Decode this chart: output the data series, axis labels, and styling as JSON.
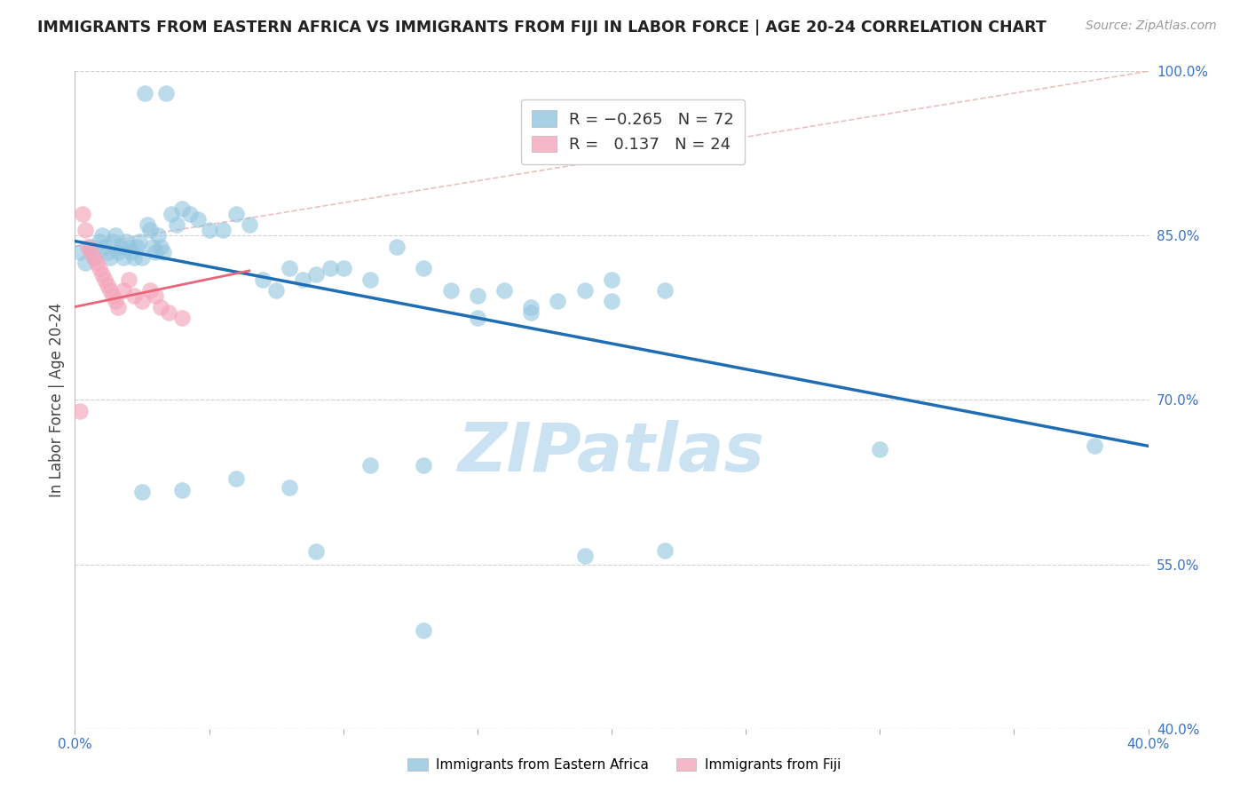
{
  "title": "IMMIGRANTS FROM EASTERN AFRICA VS IMMIGRANTS FROM FIJI IN LABOR FORCE | AGE 20-24 CORRELATION CHART",
  "source": "Source: ZipAtlas.com",
  "ylabel": "In Labor Force | Age 20-24",
  "xlim": [
    0.0,
    0.4
  ],
  "ylim": [
    0.4,
    1.0
  ],
  "xticks": [
    0.0,
    0.05,
    0.1,
    0.15,
    0.2,
    0.25,
    0.3,
    0.35,
    0.4
  ],
  "yticks_right": [
    1.0,
    0.85,
    0.7,
    0.55,
    0.4
  ],
  "ytick_labels_right": [
    "100.0%",
    "85.0%",
    "70.0%",
    "55.0%",
    "40.0%"
  ],
  "xtick_labels": [
    "0.0%",
    "",
    "",
    "",
    "",
    "",
    "",
    "",
    "40.0%"
  ],
  "blue_label": "Immigrants from Eastern Africa",
  "pink_label": "Immigrants from Fiji",
  "blue_color": "#92c5de",
  "pink_color": "#f4a6bb",
  "blue_line_color": "#1f6eb5",
  "pink_line_color": "#e8657a",
  "watermark": "ZIPatlas",
  "watermark_color": "#c5dff0",
  "blue_trend_y0": 0.845,
  "blue_trend_y1": 0.658,
  "pink_trend_x0": 0.0,
  "pink_trend_y0": 0.785,
  "pink_trend_x1": 0.065,
  "pink_trend_y1": 0.818,
  "diag_line_color": "#e8b4b8",
  "grid_color": "#d0d0d0",
  "blue_dots_x": [
    0.026,
    0.034,
    0.002,
    0.004,
    0.006,
    0.007,
    0.009,
    0.01,
    0.011,
    0.012,
    0.013,
    0.014,
    0.015,
    0.016,
    0.017,
    0.018,
    0.019,
    0.02,
    0.021,
    0.022,
    0.023,
    0.024,
    0.025,
    0.027,
    0.028,
    0.029,
    0.03,
    0.031,
    0.032,
    0.033,
    0.036,
    0.038,
    0.04,
    0.043,
    0.046,
    0.05,
    0.055,
    0.06,
    0.065,
    0.07,
    0.075,
    0.08,
    0.085,
    0.09,
    0.095,
    0.1,
    0.11,
    0.12,
    0.13,
    0.14,
    0.15,
    0.16,
    0.17,
    0.18,
    0.19,
    0.2,
    0.15,
    0.17,
    0.2,
    0.22,
    0.13,
    0.11,
    0.08,
    0.06,
    0.04,
    0.025,
    0.3,
    0.19,
    0.13,
    0.09,
    0.38,
    0.22
  ],
  "blue_dots_y": [
    0.98,
    0.98,
    0.835,
    0.825,
    0.84,
    0.83,
    0.845,
    0.85,
    0.84,
    0.835,
    0.83,
    0.845,
    0.85,
    0.835,
    0.84,
    0.83,
    0.845,
    0.84,
    0.835,
    0.83,
    0.84,
    0.845,
    0.83,
    0.86,
    0.855,
    0.84,
    0.835,
    0.85,
    0.84,
    0.835,
    0.87,
    0.86,
    0.875,
    0.87,
    0.865,
    0.855,
    0.855,
    0.87,
    0.86,
    0.81,
    0.8,
    0.82,
    0.81,
    0.815,
    0.82,
    0.82,
    0.81,
    0.84,
    0.82,
    0.8,
    0.795,
    0.8,
    0.785,
    0.79,
    0.8,
    0.81,
    0.775,
    0.78,
    0.79,
    0.8,
    0.64,
    0.64,
    0.62,
    0.628,
    0.618,
    0.616,
    0.655,
    0.558,
    0.49,
    0.562,
    0.658,
    0.563
  ],
  "pink_dots_x": [
    0.003,
    0.004,
    0.005,
    0.006,
    0.007,
    0.008,
    0.009,
    0.01,
    0.011,
    0.012,
    0.013,
    0.014,
    0.015,
    0.016,
    0.018,
    0.02,
    0.022,
    0.025,
    0.028,
    0.03,
    0.032,
    0.035,
    0.04,
    0.002
  ],
  "pink_dots_y": [
    0.87,
    0.855,
    0.84,
    0.835,
    0.83,
    0.825,
    0.82,
    0.815,
    0.81,
    0.805,
    0.8,
    0.795,
    0.79,
    0.785,
    0.8,
    0.81,
    0.795,
    0.79,
    0.8,
    0.795,
    0.785,
    0.78,
    0.775,
    0.69
  ]
}
